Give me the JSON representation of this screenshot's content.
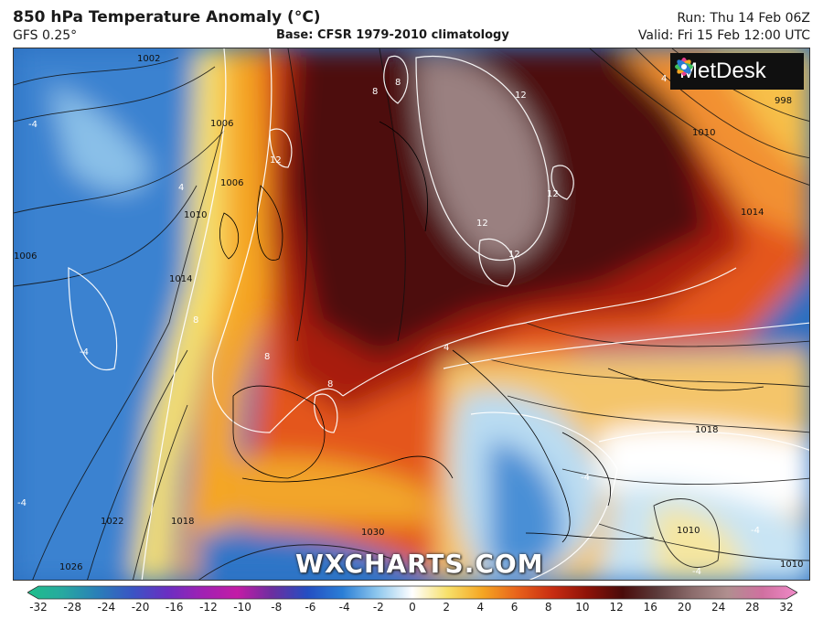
{
  "header": {
    "title": "850 hPa Temperature Anomaly (°C)",
    "model": "GFS 0.25°",
    "base": "Base: CFSR 1979-2010 climatology",
    "run": "Run: Thu 14 Feb 06Z",
    "valid": "Valid: Fri 15 Feb 12:00 UTC"
  },
  "logo": {
    "text": "MetDesk",
    "icon": "flower-logo-icon"
  },
  "watermark": "WXCHARTS.COM",
  "map": {
    "isobar_labels": [
      "1002",
      "1006",
      "1010",
      "1014",
      "1018",
      "1022",
      "1026",
      "1030",
      "998",
      "1010",
      "1014",
      "1018",
      "1010",
      "1010",
      "1006",
      "1006"
    ],
    "anomaly_labels": [
      "12",
      "12",
      "12",
      "12",
      "12",
      "8",
      "8",
      "8",
      "8",
      "8",
      "4",
      "-4",
      "-4",
      "-4",
      "-4",
      "-4",
      "-4",
      "4",
      "4"
    ]
  },
  "legend": {
    "ticks": [
      "-32",
      "-28",
      "-24",
      "-20",
      "-16",
      "-12",
      "-10",
      "-8",
      "-6",
      "-4",
      "-2",
      "0",
      "2",
      "4",
      "6",
      "8",
      "10",
      "12",
      "16",
      "20",
      "24",
      "28",
      "32"
    ],
    "colors": [
      "#1fbf8a",
      "#27a9a0",
      "#2a7fb8",
      "#3a55c4",
      "#6a2ec2",
      "#a021b3",
      "#c31ca6",
      "#6b2fa0",
      "#244ec2",
      "#2a7ed6",
      "#8fc8ee",
      "#ffffff",
      "#f7e06a",
      "#f5a623",
      "#e8621b",
      "#c82d12",
      "#8e1208",
      "#4a0c0a",
      "#5c3b3b",
      "#8c6c6c",
      "#b08f8f",
      "#d070a0",
      "#f08ac8"
    ]
  }
}
